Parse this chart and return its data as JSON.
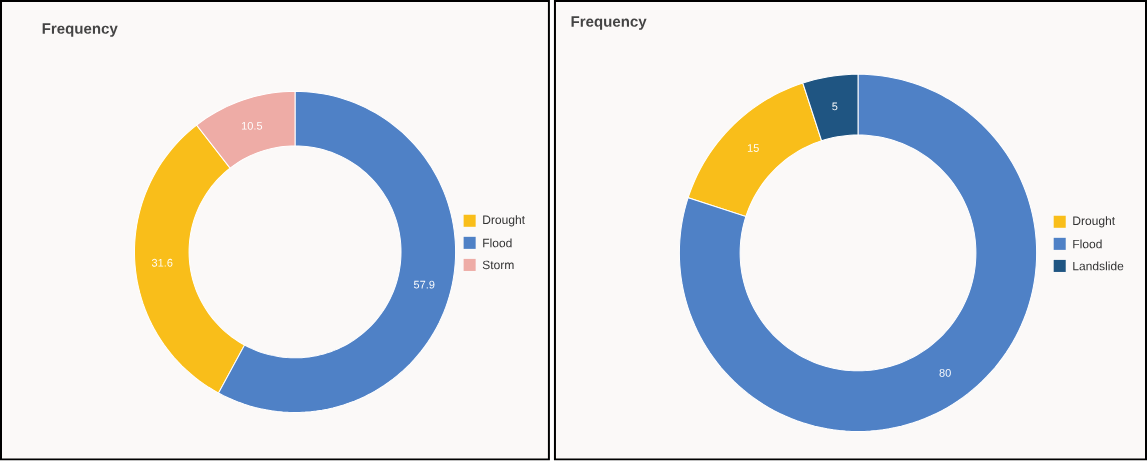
{
  "chart_data": [
    {
      "type": "donut",
      "title": "Frequency",
      "categories": [
        "Drought",
        "Flood",
        "Storm"
      ],
      "values": [
        31.6,
        57.9,
        10.5
      ],
      "colors": [
        "#f9be1a",
        "#4f81c6",
        "#eeaca6"
      ],
      "data_labels": true,
      "legend": "right"
    },
    {
      "type": "donut",
      "title": "Frequency",
      "categories": [
        "Drought",
        "Flood",
        "Landslide"
      ],
      "values": [
        15,
        80,
        5
      ],
      "colors": [
        "#f9be1a",
        "#4f81c6",
        "#1f5582"
      ],
      "data_labels": true,
      "legend": "right"
    }
  ]
}
